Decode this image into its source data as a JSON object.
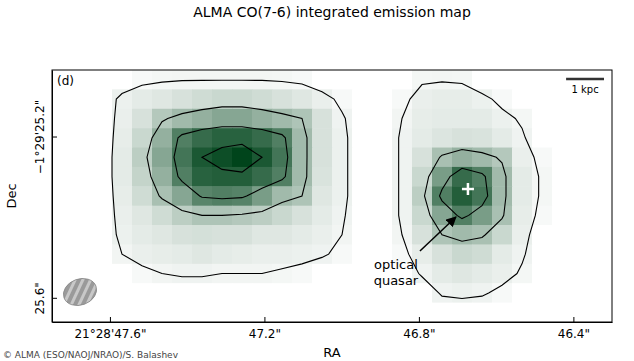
{
  "chart_data": {
    "type": "heatmap",
    "title": "ALMA CO(7-6) integrated emission map",
    "panel_label": "(d)",
    "x_label": "RA",
    "y_label": "Dec",
    "xlim": [
      47.75,
      46.3
    ],
    "xticks": [
      {
        "value": 47.6,
        "label": "21°28'47.6\""
      },
      {
        "value": 47.2,
        "label": "47.2\""
      },
      {
        "value": 46.8,
        "label": "46.8\""
      },
      {
        "value": 46.4,
        "label": "46.4\""
      }
    ],
    "ylim": [
      25.66,
      25.035
    ],
    "yticks": [
      {
        "value": 25.2,
        "label": "−1°29'25.2\""
      },
      {
        "value": 25.6,
        "label": "25.6\""
      }
    ],
    "cells": [
      [
        0,
        0,
        0,
        0,
        0.3,
        0.4,
        0.45,
        0.45,
        0.45,
        0.45,
        0.45,
        0.4,
        0.3,
        0,
        0,
        0,
        0,
        0,
        0.4,
        0.45,
        0.4,
        0,
        0,
        0,
        0,
        0,
        0,
        0
      ],
      [
        0,
        0,
        0,
        0.7,
        1,
        1.2,
        1.5,
        1.8,
        2,
        2,
        1.8,
        1.5,
        1.2,
        0.8,
        0.3,
        0,
        0,
        0.3,
        0.8,
        0.9,
        0.9,
        0.7,
        0.3,
        0,
        0,
        0,
        0,
        0
      ],
      [
        0,
        0,
        0,
        0.8,
        1.5,
        2.8,
        3.5,
        4,
        4.5,
        4.5,
        4,
        3.5,
        3,
        1.5,
        0.6,
        0,
        0,
        0.5,
        0.9,
        1,
        1,
        1,
        0.7,
        0.4,
        0,
        0,
        0,
        0
      ],
      [
        0,
        0,
        0,
        0.9,
        2,
        4,
        6.5,
        7.5,
        8,
        8,
        7.5,
        6.5,
        3.5,
        1.5,
        0.7,
        0,
        0,
        0.6,
        1,
        1.3,
        1.5,
        1.4,
        1,
        0.6,
        0,
        0,
        0,
        0
      ],
      [
        0,
        0,
        0,
        1,
        2.5,
        4.5,
        7,
        8.5,
        9,
        9.5,
        8.5,
        7,
        3.5,
        1.5,
        0.7,
        0,
        0,
        0.6,
        1.5,
        3.2,
        4,
        3.5,
        2.8,
        0.8,
        0.3,
        0,
        0,
        0
      ],
      [
        0,
        0,
        0,
        1,
        2.2,
        4,
        6.5,
        8,
        8.2,
        8.2,
        7.5,
        6.5,
        3.5,
        1.4,
        0.7,
        0,
        0,
        0.6,
        2,
        5,
        7.5,
        6.5,
        3.5,
        1,
        0.4,
        0,
        0,
        0
      ],
      [
        0,
        0,
        0,
        0.9,
        1.8,
        3.2,
        4.5,
        6.2,
        6.5,
        6.3,
        5,
        3.5,
        3,
        1.2,
        0.7,
        0,
        0,
        0.6,
        2.5,
        6.5,
        8.2,
        7,
        3.5,
        1,
        0.4,
        0,
        0,
        0
      ],
      [
        0,
        0,
        0,
        0.8,
        1.2,
        1.8,
        2.5,
        3,
        3,
        2.8,
        2.5,
        2,
        1.5,
        1,
        0.6,
        0,
        0,
        0.6,
        2,
        4.5,
        6.5,
        5,
        3.2,
        0.9,
        0.3,
        0,
        0,
        0
      ],
      [
        0,
        0,
        0,
        0.7,
        1,
        1.2,
        1.5,
        1.6,
        1.5,
        1.5,
        1.2,
        1.2,
        1,
        0.8,
        0.5,
        0,
        0,
        0.5,
        1.5,
        3,
        3.5,
        3.2,
        2,
        0.8,
        0,
        0,
        0,
        0
      ],
      [
        0,
        0,
        0,
        0.5,
        0.8,
        0.9,
        1,
        1.2,
        1,
        0.9,
        0.8,
        0.8,
        0.7,
        0.6,
        0.3,
        0,
        0,
        0.3,
        0.9,
        1.5,
        2,
        1.8,
        1,
        0.6,
        0,
        0,
        0,
        0
      ],
      [
        0,
        0,
        0,
        0,
        0.3,
        0.5,
        0.6,
        0.6,
        0.5,
        0.5,
        0.5,
        0.4,
        0.3,
        0,
        0,
        0,
        0,
        0,
        0.6,
        1,
        1.2,
        1,
        0.8,
        0.4,
        0,
        0,
        0,
        0
      ],
      [
        0,
        0,
        0,
        0,
        0,
        0,
        0,
        0,
        0,
        0,
        0,
        0,
        0,
        0,
        0,
        0,
        0,
        0,
        0,
        0.6,
        0.7,
        0.6,
        0.3,
        0,
        0,
        0,
        0,
        0
      ],
      [
        0,
        0,
        0,
        0,
        0,
        0,
        0,
        0,
        0,
        0,
        0,
        0,
        0,
        0,
        0,
        0,
        0,
        0,
        0,
        0,
        0,
        0,
        0,
        0,
        0,
        0,
        0,
        0
      ]
    ],
    "contour_levels": [
      0.5,
      3,
      6,
      8.5
    ],
    "color": "#00441b",
    "points": {
      "x": [
        46.673
      ],
      "y": [
        25.33
      ],
      "marker": "plus",
      "color": "#ffffff"
    },
    "annotation": [
      "optical",
      "quasar"
    ],
    "scale_bar": {
      "label": "1 kpc",
      "length": 0.094
    },
    "credit": "© ALMA (ESO/NAOJ/NRAO)/S. Balashev"
  }
}
